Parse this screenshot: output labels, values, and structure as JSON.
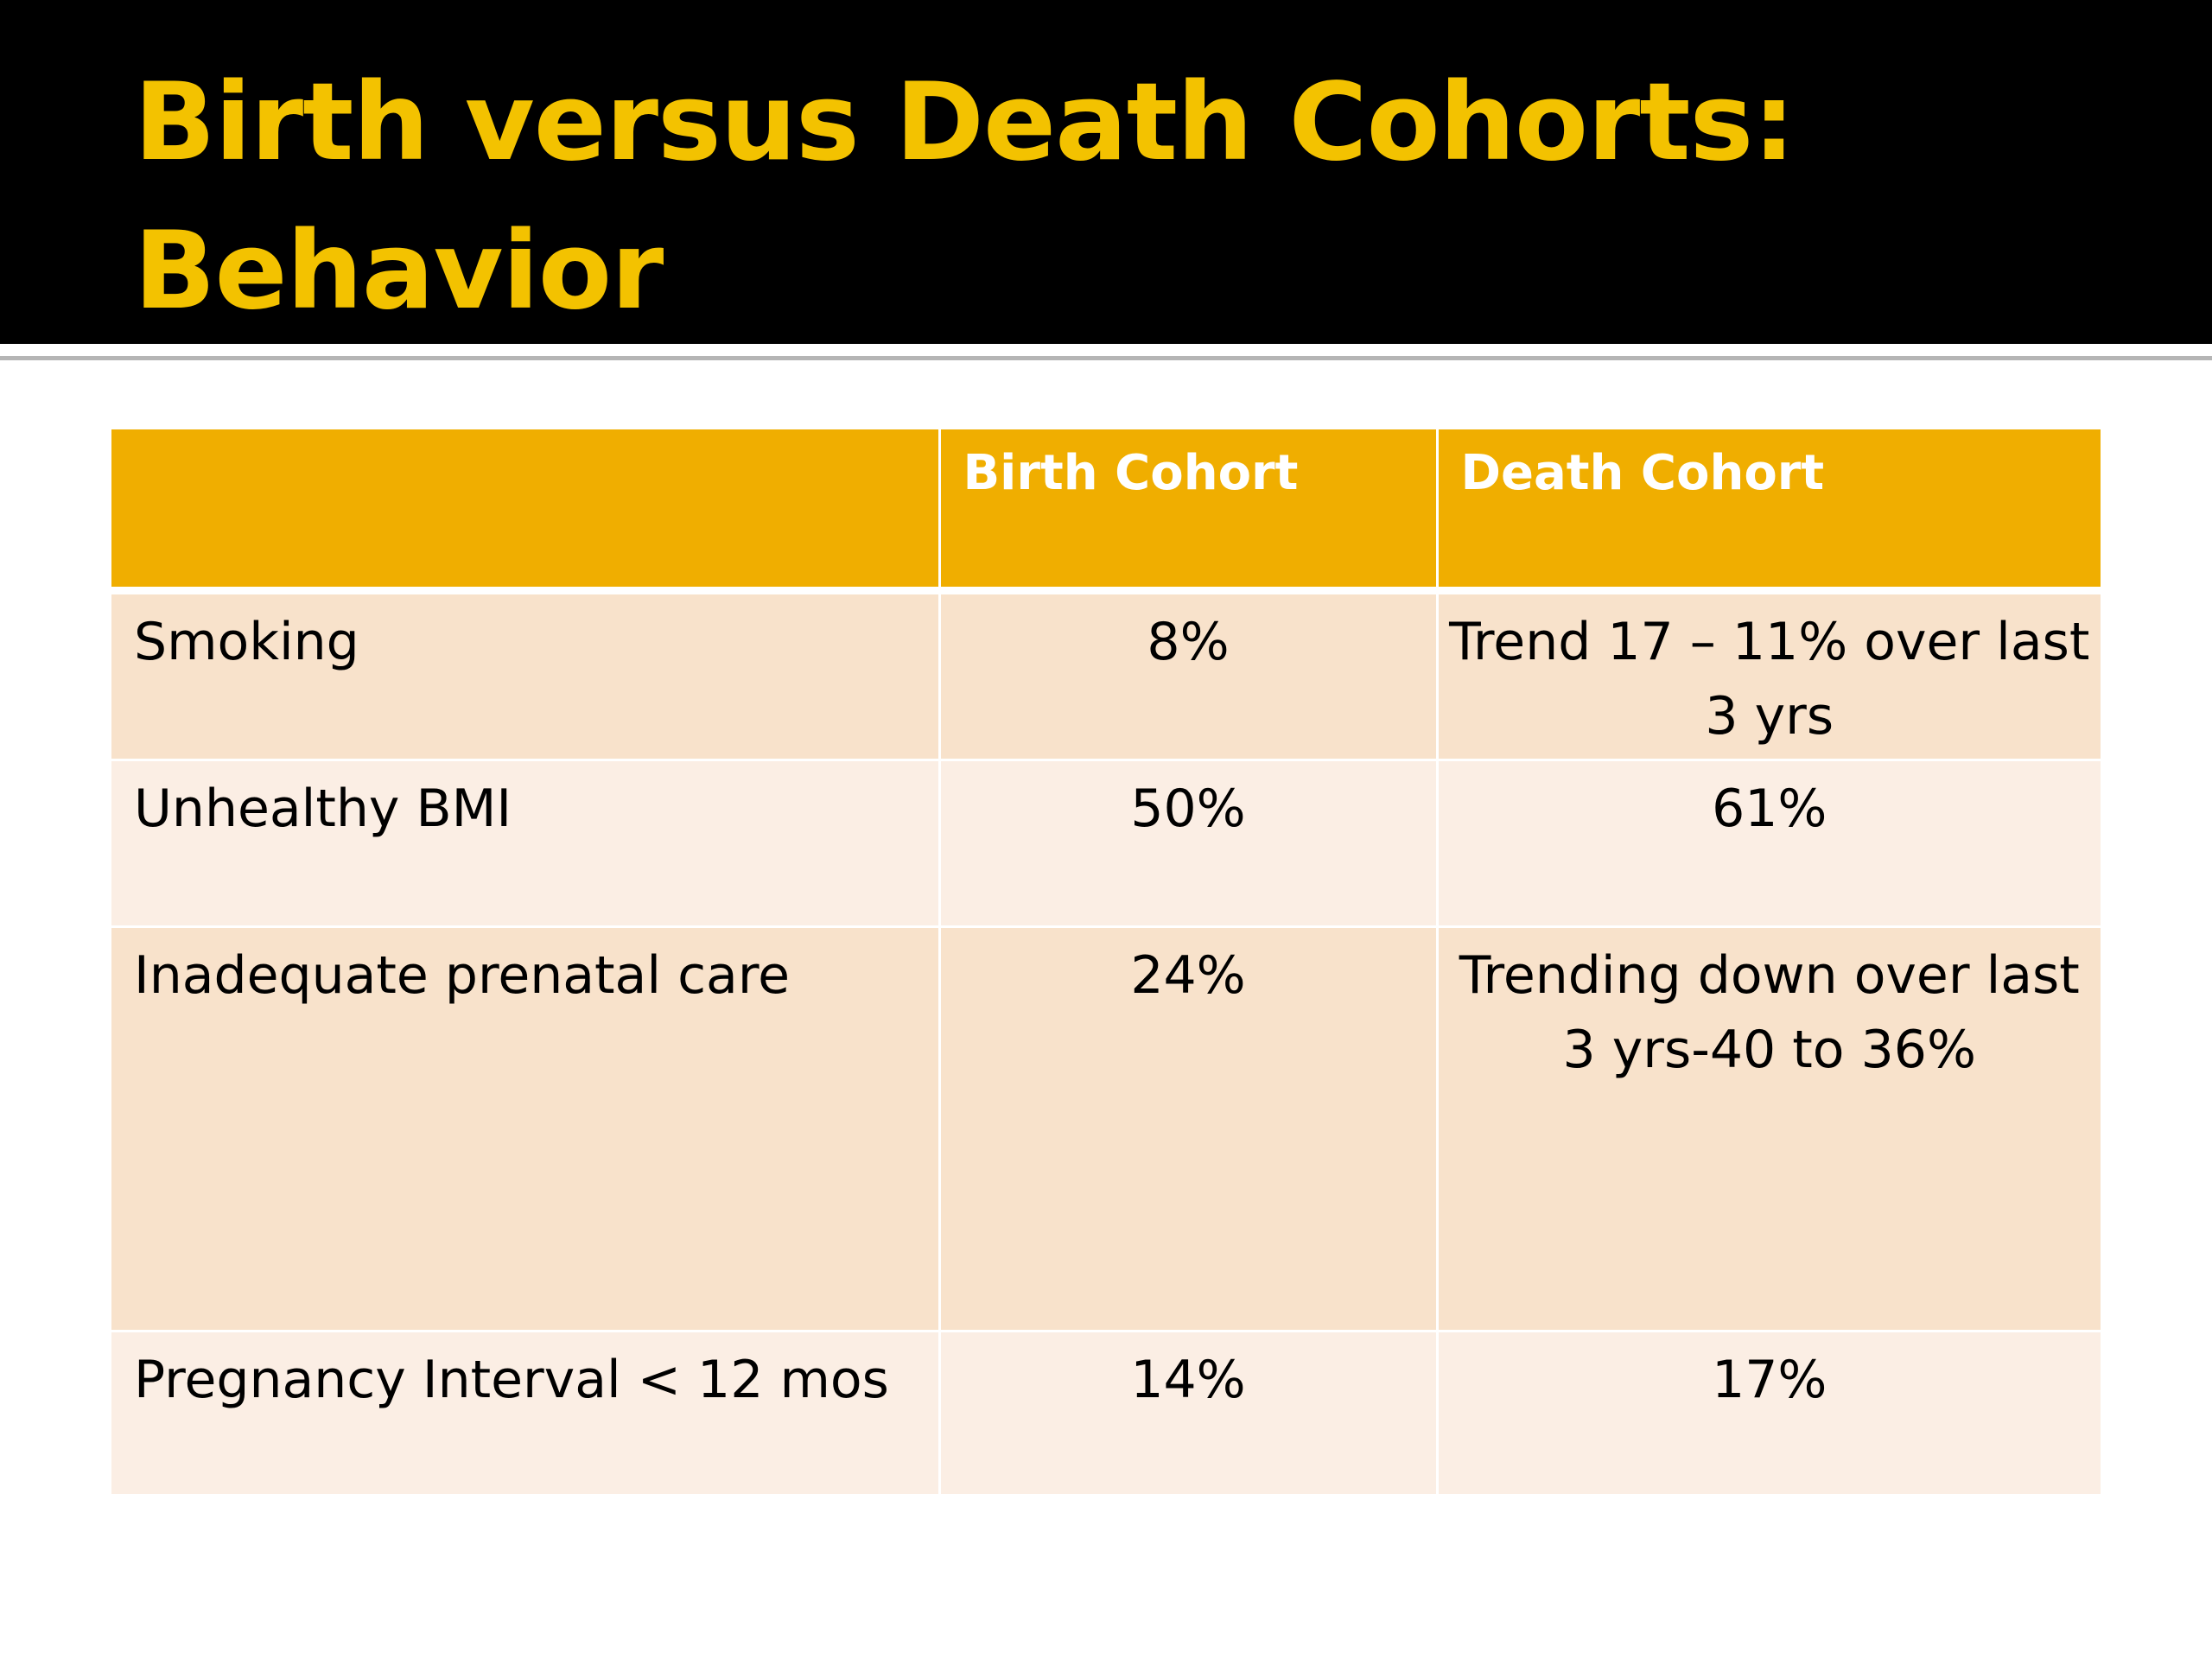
{
  "slide": {
    "title_line1": "Birth versus Death Cohorts:",
    "title_line2": "Behavior"
  },
  "table": {
    "headers": [
      "",
      "Birth Cohort",
      "Death Cohort"
    ],
    "rows": [
      {
        "label": "Smoking",
        "birth": "8%",
        "death": "Trend 17 – 11% over last 3 yrs"
      },
      {
        "label": "Unhealthy BMI",
        "birth": "50%",
        "death": "61%"
      },
      {
        "label": "Inadequate prenatal care",
        "birth": "24%",
        "death": "Trending down over last 3 yrs-40 to 36%"
      },
      {
        "label": "Pregnancy Interval < 12 mos",
        "birth": "14%",
        "death": "17%"
      }
    ]
  },
  "colors": {
    "title_band": "#000000",
    "title_text": "#f3c200",
    "header_fill": "#f0ae00",
    "row_fill_dark": "#f8e2cb",
    "row_fill_light": "#fbeee4"
  }
}
